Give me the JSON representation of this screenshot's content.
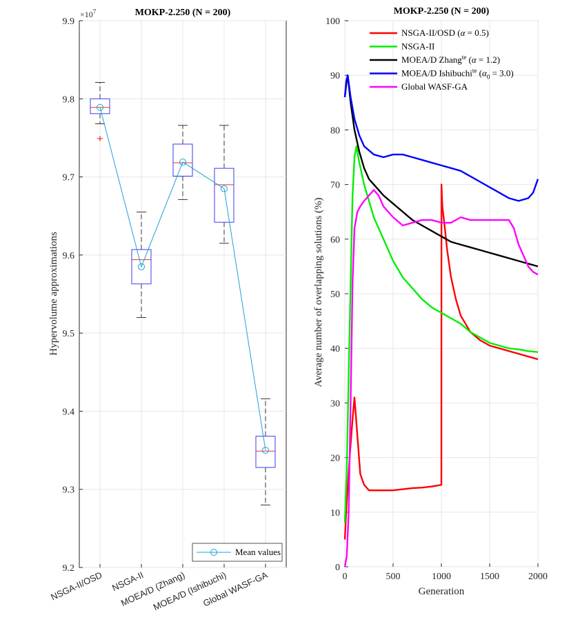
{
  "chart_data": [
    {
      "type": "box",
      "title": "MOKP-2.250 (N = 200)",
      "ylabel": "Hypervolume approximations",
      "xlabel": "",
      "yscale_factor_label": "×10",
      "yscale_factor_exp": "7",
      "ylim": [
        9.2,
        9.9
      ],
      "yticks": [
        "9.2",
        "9.3",
        "9.4",
        "9.5",
        "9.6",
        "9.7",
        "9.8",
        "9.9"
      ],
      "grid": true,
      "legend_position": "bottom-right",
      "categories": [
        "NSGA-II/OSD",
        "NSGA-II",
        "MOEA/D (Zhang)",
        "MOEA/D (Ishibuchi)",
        "Global WASF-GA"
      ],
      "boxes": [
        {
          "whisker_low": 9.768,
          "q1": 9.781,
          "median": 9.789,
          "q3": 9.8,
          "whisker_high": 9.821,
          "outliers": [
            9.749
          ]
        },
        {
          "whisker_low": 9.52,
          "q1": 9.563,
          "median": 9.594,
          "q3": 9.607,
          "whisker_high": 9.655,
          "outliers": []
        },
        {
          "whisker_low": 9.671,
          "q1": 9.701,
          "median": 9.718,
          "q3": 9.742,
          "whisker_high": 9.766,
          "outliers": []
        },
        {
          "whisker_low": 9.615,
          "q1": 9.642,
          "median": 9.69,
          "q3": 9.711,
          "whisker_high": 9.766,
          "outliers": []
        },
        {
          "whisker_low": 9.28,
          "q1": 9.328,
          "median": 9.349,
          "q3": 9.368,
          "whisker_high": 9.416,
          "outliers": []
        }
      ],
      "series": [
        {
          "name": "Mean values",
          "values": [
            9.789,
            9.585,
            9.719,
            9.685,
            9.35
          ]
        }
      ],
      "colors": {
        "box": "#3a3af0",
        "median": "#e03030",
        "outlier": "#ff0000",
        "mean": "#1f9fd6",
        "whisker": "#333333"
      }
    },
    {
      "type": "line",
      "title": "MOKP-2.250 (N = 200)",
      "xlabel": "Generation",
      "ylabel": "Average number of overlapping solutions (%)",
      "xlim": [
        0,
        2000
      ],
      "ylim": [
        0,
        100
      ],
      "xticks": [
        "0",
        "500",
        "1000",
        "1500",
        "2000"
      ],
      "yticks": [
        "0",
        "10",
        "20",
        "30",
        "40",
        "50",
        "60",
        "70",
        "80",
        "90",
        "100"
      ],
      "grid": true,
      "legend_position": "top-right",
      "series": [
        {
          "name": "NSGA-II/OSD (α = 0.5)",
          "legend_parts": [
            "NSGA-II/OSD (",
            "α",
            " = 0.5)"
          ],
          "color": "#ff0000",
          "x": [
            0,
            20,
            50,
            80,
            100,
            130,
            160,
            200,
            250,
            300,
            400,
            500,
            600,
            700,
            800,
            900,
            1000,
            1001,
            1010,
            1030,
            1060,
            1100,
            1150,
            1200,
            1300,
            1400,
            1500,
            1600,
            1700,
            1800,
            1900,
            2000
          ],
          "y": [
            5,
            12,
            20,
            27,
            31,
            24,
            17,
            15,
            14,
            14,
            14,
            14,
            14.2,
            14.4,
            14.5,
            14.7,
            15,
            70,
            66,
            63,
            58,
            53,
            49,
            46,
            43,
            41.5,
            40.5,
            40,
            39.5,
            39,
            38.5,
            38
          ]
        },
        {
          "name": "NSGA-II",
          "legend_parts": [
            "NSGA-II"
          ],
          "color": "#00ee00",
          "x": [
            0,
            20,
            40,
            60,
            80,
            100,
            120,
            150,
            200,
            250,
            300,
            400,
            500,
            600,
            700,
            800,
            900,
            1000,
            1100,
            1200,
            1300,
            1400,
            1500,
            1600,
            1700,
            1800,
            1900,
            2000
          ],
          "y": [
            8,
            18,
            35,
            52,
            68,
            75,
            77,
            74,
            70,
            67,
            64,
            60,
            56,
            53,
            51,
            49,
            47.5,
            46.5,
            45.5,
            44.5,
            43,
            42,
            41,
            40.5,
            40,
            39.8,
            39.5,
            39.3
          ]
        },
        {
          "name": "MOEA/D Zhangte (α = 1.2)",
          "legend_parts": [
            "MOEA/D Zhang",
            "te",
            " (",
            "α",
            " = 1.2)"
          ],
          "color": "#000000",
          "x": [
            0,
            20,
            30,
            60,
            100,
            150,
            200,
            250,
            300,
            400,
            500,
            600,
            700,
            800,
            900,
            1000,
            1100,
            1200,
            1300,
            1400,
            1500,
            1600,
            1700,
            1800,
            1900,
            2000
          ],
          "y": [
            86,
            89,
            90,
            85,
            80,
            76,
            73,
            71,
            70,
            68,
            66.5,
            65,
            63.5,
            62.5,
            61.5,
            60.5,
            59.5,
            59,
            58.5,
            58,
            57.5,
            57,
            56.5,
            56,
            55.5,
            55
          ]
        },
        {
          "name": "MOEA/D Ishibuchite (α0 = 3.0)",
          "legend_parts": [
            "MOEA/D Ishibuchi",
            "te",
            " (",
            "α",
            "0",
            " = 3.0)"
          ],
          "color": "#0000ff",
          "x": [
            0,
            15,
            30,
            60,
            100,
            150,
            200,
            300,
            400,
            500,
            600,
            700,
            800,
            900,
            1000,
            1100,
            1200,
            1300,
            1400,
            1500,
            1600,
            1700,
            1800,
            1900,
            1950,
            2000
          ],
          "y": [
            86,
            89,
            90,
            86,
            82,
            79,
            77,
            75.5,
            75,
            75.5,
            75.5,
            75,
            74.5,
            74,
            73.5,
            73,
            72.5,
            71.5,
            70.5,
            69.5,
            68.5,
            67.5,
            67,
            67.5,
            68.5,
            71
          ]
        },
        {
          "name": "Global WASF-GA",
          "legend_parts": [
            "Global WASF-GA"
          ],
          "color": "#ff00ff",
          "x": [
            0,
            20,
            40,
            60,
            80,
            100,
            130,
            160,
            200,
            250,
            300,
            350,
            400,
            500,
            600,
            700,
            800,
            900,
            1000,
            1100,
            1200,
            1300,
            1400,
            1500,
            1600,
            1700,
            1750,
            1800,
            1850,
            1900,
            1950,
            2000
          ],
          "y": [
            0,
            2,
            10,
            30,
            52,
            62,
            65,
            66,
            67,
            68,
            69,
            68,
            66,
            64,
            62.5,
            63,
            63.5,
            63.5,
            63,
            63,
            64,
            63.5,
            63.5,
            63.5,
            63.5,
            63.5,
            62,
            59,
            57,
            55,
            54,
            53.5
          ]
        }
      ]
    }
  ]
}
